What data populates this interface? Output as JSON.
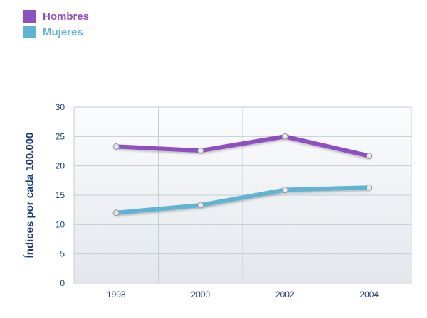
{
  "colors": {
    "hombres": "#8e4fc1",
    "mujeres": "#5fb3d3",
    "axis_text": "#1c3c78",
    "grid": "#c6ccd6"
  },
  "chart_data": {
    "type": "line",
    "title": "",
    "xlabel": "",
    "ylabel": "Índices por cada 100.000",
    "x": [
      "1998",
      "2000",
      "2002",
      "2004"
    ],
    "ylim": [
      0,
      30
    ],
    "yticks": [
      "0",
      "5",
      "10",
      "15",
      "20",
      "25",
      "30"
    ],
    "grid": true,
    "legend_position": "top-left",
    "series": [
      {
        "name": "Hombres",
        "key": "hombres",
        "values": [
          23.3,
          22.6,
          25.0,
          21.7
        ]
      },
      {
        "name": "Mujeres",
        "key": "mujeres",
        "values": [
          12.0,
          13.3,
          15.9,
          16.3
        ]
      }
    ]
  }
}
